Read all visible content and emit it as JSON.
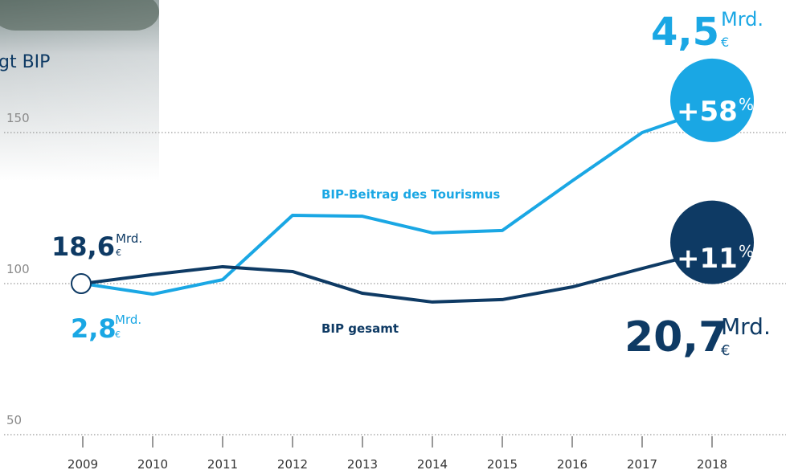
{
  "chart_data": {
    "type": "line",
    "title": "gt BIP",
    "categories": [
      "2009",
      "2010",
      "2011",
      "2012",
      "2013",
      "2014",
      "2015",
      "2016",
      "2017",
      "2018"
    ],
    "series": [
      {
        "name": "BIP-Beitrag des Tourismus",
        "color": "#1aa7e4",
        "values": [
          100,
          96.5,
          101.3,
          122.6,
          122.3,
          116.8,
          117.6,
          134,
          150,
          158
        ]
      },
      {
        "name": "BIP gesamt",
        "color": "#0e3a64",
        "values": [
          100,
          103,
          105.6,
          104,
          96.8,
          93.9,
          94.7,
          98.9,
          105,
          111
        ]
      }
    ],
    "ylim": [
      50,
      190
    ],
    "yticks": [
      50,
      100,
      150
    ],
    "grid": true,
    "annotations": {
      "tourism_start": {
        "value": "2,8",
        "unit": "Mrd.",
        "currency": "€"
      },
      "tourism_end": {
        "value": "4,5",
        "unit": "Mrd.",
        "currency": "€"
      },
      "tourism_change": {
        "value": "+58",
        "unit": "%"
      },
      "total_start": {
        "value": "18,6",
        "unit": "Mrd.",
        "currency": "€"
      },
      "total_end": {
        "value": "20,7",
        "unit": "Mrd.",
        "currency": "€"
      },
      "total_change": {
        "value": "+11",
        "unit": "%"
      }
    }
  }
}
